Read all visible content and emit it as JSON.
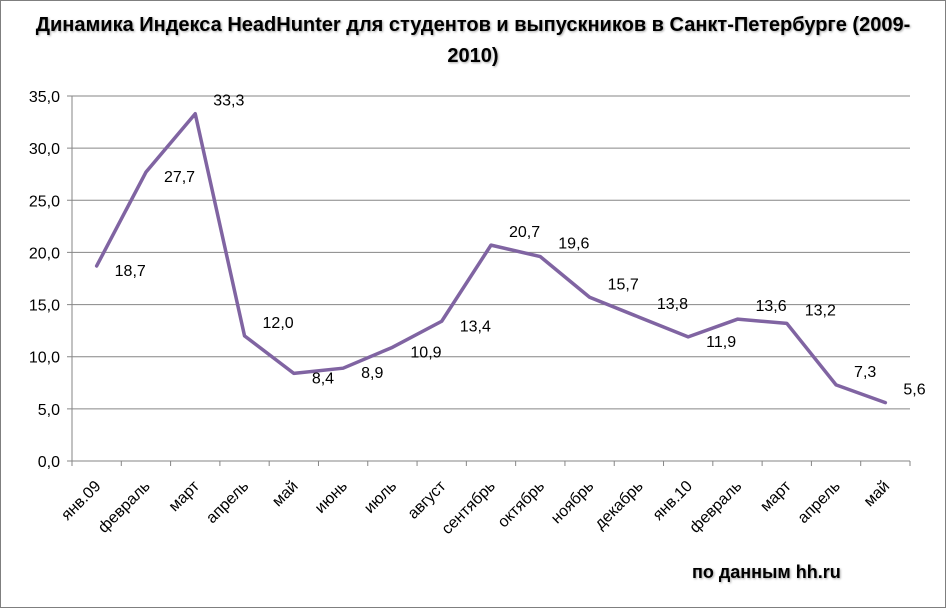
{
  "chart_data": {
    "type": "line",
    "title_line1": "Динамика Индекса HeadHunter для студентов и выпускников в Санкт-Петербурге (2009-",
    "title_line2": "2010)",
    "source_note": "по данным hh.ru",
    "categories": [
      "янв.09",
      "февраль",
      "март",
      "апрель",
      "май",
      "июнь",
      "июль",
      "август",
      "сентябрь",
      "октябрь",
      "ноябрь",
      "декабрь",
      "янв.10",
      "февраль",
      "март",
      "апрель",
      "май"
    ],
    "values": [
      18.7,
      27.7,
      33.3,
      12.0,
      8.4,
      8.9,
      10.9,
      13.4,
      20.7,
      19.6,
      15.7,
      13.8,
      11.9,
      13.6,
      13.2,
      7.3,
      5.6
    ],
    "data_labels": [
      "18,7",
      "27,7",
      "33,3",
      "12,0",
      "8,4",
      "8,9",
      "10,9",
      "13,4",
      "20,7",
      "19,6",
      "15,7",
      "13,8",
      "11,9",
      "13,6",
      "13,2",
      "7,3",
      "5,6"
    ],
    "yticks": [
      "0,0",
      "5,0",
      "10,0",
      "15,0",
      "20,0",
      "25,0",
      "30,0",
      "35,0"
    ],
    "ylim": [
      0,
      35
    ],
    "grid": true,
    "legend": "none",
    "line_color": "#8064a2"
  }
}
